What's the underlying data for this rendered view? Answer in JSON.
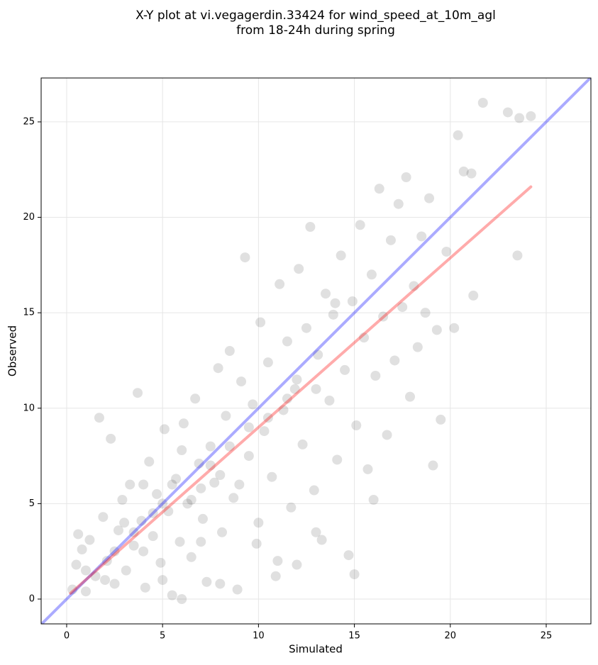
{
  "chart_data": {
    "type": "scatter",
    "title": [
      "X-Y plot at vi.vegagerdin.33424 for wind_speed_at_10m_agl",
      "from 18-24h during spring"
    ],
    "x_label": "Simulated",
    "y_label": "Observed",
    "xlim": [
      -1.33,
      27.33
    ],
    "ylim": [
      -1.3,
      27.3
    ],
    "xticks": [
      0,
      5,
      10,
      15,
      20,
      25
    ],
    "yticks": [
      0,
      5,
      10,
      15,
      20,
      25
    ],
    "grid": true,
    "series": [
      {
        "type": "scatter",
        "color": "#000000",
        "opacity": 0.12,
        "x": [
          0.3,
          0.5,
          0.8,
          1.0,
          1.2,
          1.5,
          1.7,
          1.9,
          2.1,
          2.3,
          2.5,
          2.7,
          2.9,
          3.1,
          3.3,
          3.5,
          3.7,
          3.9,
          4.1,
          4.3,
          4.5,
          4.7,
          4.9,
          5.1,
          5.3,
          5.5,
          5.7,
          5.9,
          6.1,
          6.3,
          6.5,
          6.7,
          6.9,
          7.1,
          7.3,
          7.5,
          7.7,
          7.9,
          8.1,
          8.3,
          8.5,
          8.7,
          8.9,
          9.1,
          9.3,
          9.5,
          9.7,
          9.9,
          10.1,
          10.3,
          10.5,
          10.7,
          10.9,
          11.1,
          11.3,
          11.5,
          11.7,
          11.9,
          12.1,
          12.3,
          12.5,
          12.7,
          12.9,
          13.1,
          13.3,
          13.5,
          13.7,
          13.9,
          14.1,
          14.3,
          14.5,
          14.7,
          14.9,
          15.1,
          15.3,
          15.5,
          15.7,
          15.9,
          16.1,
          16.3,
          16.5,
          16.7,
          16.9,
          17.1,
          17.3,
          17.5,
          17.7,
          17.9,
          18.1,
          18.3,
          18.5,
          18.7,
          18.9,
          19.1,
          19.3,
          19.5,
          19.8,
          20.2,
          20.4,
          20.7,
          21.1,
          21.2,
          21.7,
          23.0,
          23.5,
          23.6,
          24.2,
          15.0,
          16.0,
          13.0,
          12.0,
          11.0,
          10.0,
          8.0,
          6.0,
          5.0,
          4.0,
          2.0,
          3.0,
          1.0,
          0.6,
          7.0,
          9.0,
          6.5,
          5.5,
          4.5,
          3.5,
          7.5,
          8.5,
          2.5,
          6.0,
          5.0,
          4.0,
          10.5,
          11.5,
          9.5,
          14.0,
          13.0,
          12.0,
          7.0,
          8.0
        ],
        "y": [
          0.5,
          1.8,
          2.6,
          0.4,
          3.1,
          1.2,
          9.5,
          4.3,
          2.0,
          8.4,
          0.8,
          3.6,
          5.2,
          1.5,
          6.0,
          2.8,
          10.8,
          4.1,
          0.6,
          7.2,
          3.3,
          5.5,
          1.9,
          8.9,
          4.6,
          0.2,
          6.3,
          3.0,
          9.2,
          5.0,
          2.2,
          10.5,
          7.1,
          4.2,
          0.9,
          8.0,
          6.1,
          12.1,
          3.5,
          9.6,
          13.0,
          5.3,
          0.5,
          11.4,
          17.9,
          7.5,
          10.2,
          2.9,
          14.5,
          8.8,
          12.4,
          6.4,
          1.2,
          16.5,
          9.9,
          13.5,
          4.8,
          11.0,
          17.3,
          8.1,
          14.2,
          19.5,
          5.7,
          12.8,
          3.1,
          16.0,
          10.4,
          14.9,
          7.3,
          18.0,
          12.0,
          2.3,
          15.6,
          9.1,
          19.6,
          13.7,
          6.8,
          17.0,
          11.7,
          21.5,
          14.8,
          8.6,
          18.8,
          12.5,
          20.7,
          15.3,
          22.1,
          10.6,
          16.4,
          13.2,
          19.0,
          15.0,
          21.0,
          7.0,
          14.1,
          9.4,
          18.2,
          14.2,
          24.3,
          22.4,
          22.3,
          15.9,
          26.0,
          25.5,
          18.0,
          25.2,
          25.3,
          1.3,
          5.2,
          3.5,
          1.8,
          2.0,
          4.0,
          0.8,
          0.0,
          1.0,
          2.5,
          1.0,
          4.0,
          1.5,
          3.4,
          3.0,
          6.0,
          5.2,
          6.0,
          4.5,
          3.5,
          7.0,
          8.0,
          2.5,
          7.8,
          5.0,
          6.0,
          9.5,
          10.5,
          9.0,
          15.5,
          11.0,
          11.5,
          5.8,
          6.5
        ]
      },
      {
        "type": "line",
        "color": "#0000ff",
        "opacity": 0.33,
        "x": [
          -1.33,
          27.33
        ],
        "y": [
          -1.33,
          27.33
        ]
      },
      {
        "type": "line",
        "color": "#ff0000",
        "opacity": 0.33,
        "x": [
          0.2,
          24.2
        ],
        "y": [
          0.3,
          21.6
        ]
      }
    ]
  }
}
